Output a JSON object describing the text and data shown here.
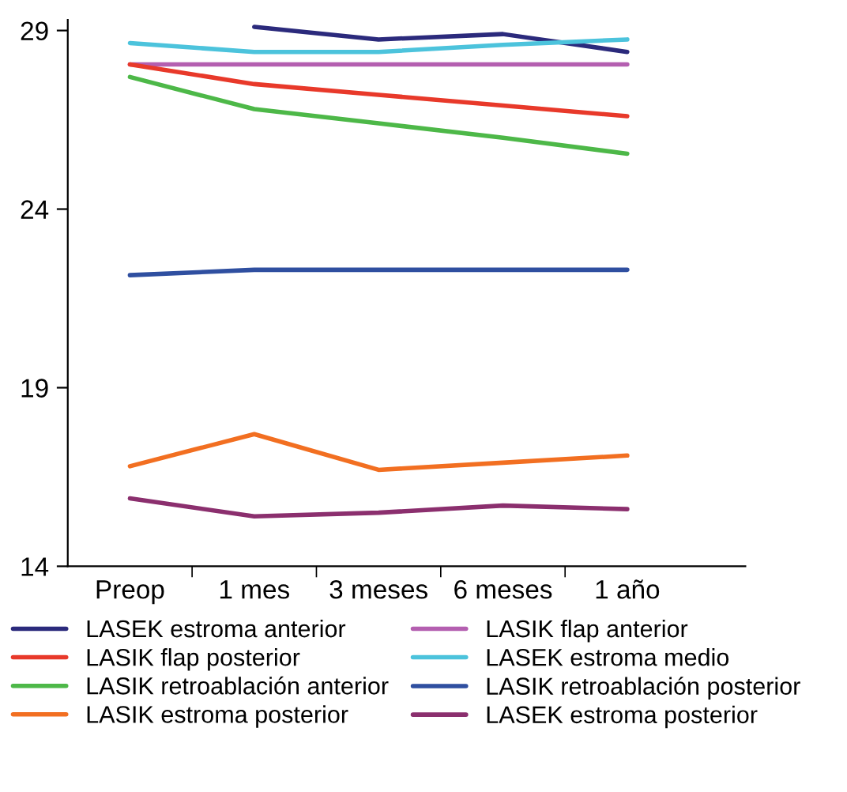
{
  "chart_data": {
    "type": "line",
    "categories": [
      "Preop",
      "1 mes",
      "3 meses",
      "6 meses",
      "1 año"
    ],
    "ylim": [
      14,
      29.3
    ],
    "yticks": [
      14,
      19,
      24,
      29
    ],
    "grid": false,
    "legend": "bottom",
    "marker": "none",
    "line_style": "solid",
    "series": [
      {
        "name": "LASEK estroma anterior",
        "color": "#2b2a7c",
        "values": [
          null,
          29.1,
          28.75,
          28.9,
          28.4
        ]
      },
      {
        "name": "LASIK flap anterior",
        "color": "#b45fb0",
        "values": [
          28.05,
          28.05,
          28.05,
          28.05,
          28.05
        ]
      },
      {
        "name": "LASIK flap posterior",
        "color": "#e8392a",
        "values": [
          28.05,
          27.5,
          27.2,
          26.9,
          26.6
        ]
      },
      {
        "name": "LASEK estroma medio",
        "color": "#4cc3dc",
        "values": [
          28.65,
          28.4,
          28.4,
          28.6,
          28.75
        ]
      },
      {
        "name": "LASIK retroablación anterior",
        "color": "#4db848",
        "values": [
          27.7,
          26.8,
          26.4,
          26.0,
          25.55
        ]
      },
      {
        "name": "LASIK retroablación posterior",
        "color": "#2f4fa0",
        "values": [
          22.15,
          22.3,
          22.3,
          22.3,
          22.3
        ]
      },
      {
        "name": "LASIK estroma posterior",
        "color": "#f26f21",
        "values": [
          16.8,
          17.7,
          16.7,
          16.9,
          17.1
        ]
      },
      {
        "name": "LASEK estroma posterior",
        "color": "#8b2f6e",
        "values": [
          15.9,
          15.4,
          15.5,
          15.7,
          15.6
        ]
      }
    ]
  }
}
